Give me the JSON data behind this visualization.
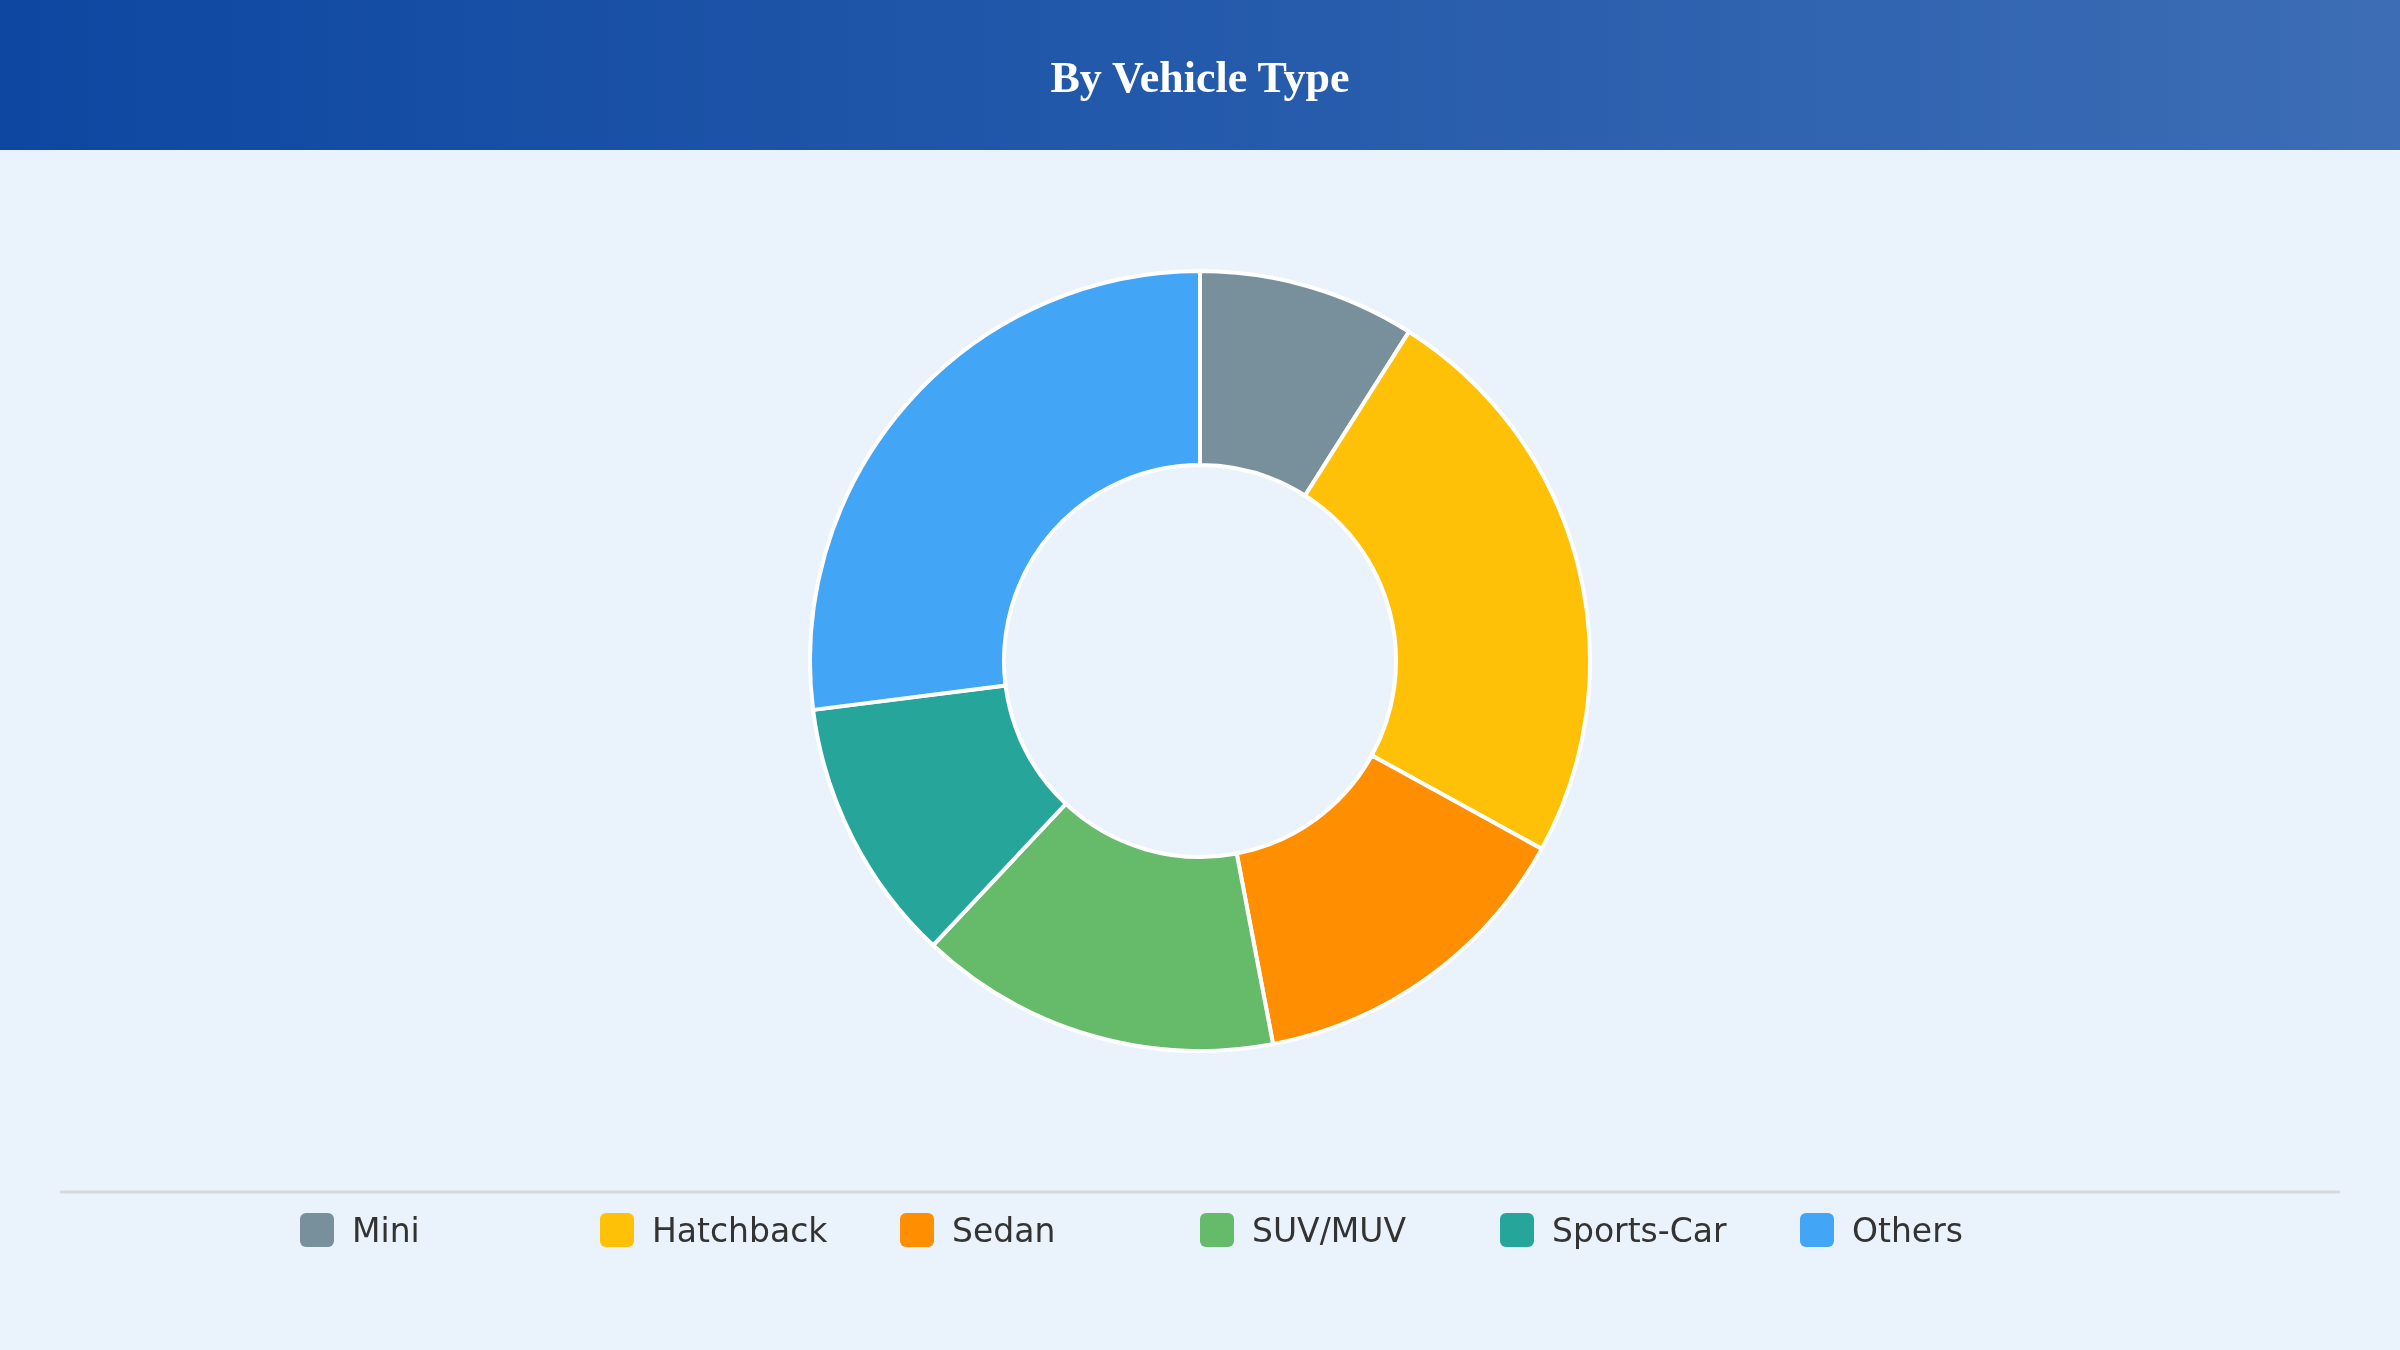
{
  "chart_data": {
    "type": "donut",
    "title": "By Vehicle Type",
    "categories": [
      "Mini",
      "Hatchback",
      "Sedan",
      "SUV/MUV",
      "Sports-Car",
      "Others"
    ],
    "values": [
      9,
      24,
      14,
      15,
      11,
      27
    ],
    "colors": [
      "#78909c",
      "#ffc107",
      "#ff8f00",
      "#66bb6a",
      "#26a69a",
      "#42a5f5"
    ],
    "legend": "bottom"
  }
}
